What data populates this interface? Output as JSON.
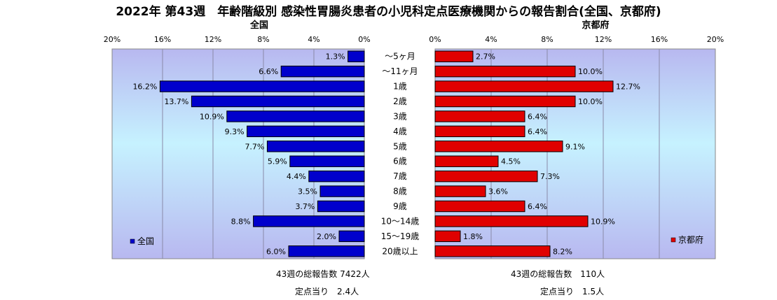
{
  "title": "2022年 第43週　年齢階級別 感染性胃腸炎患者の小児科定点医療機関からの報告割合(全国、京都府)",
  "categories": [
    "～5ヶ月",
    "～11ヶ月",
    "1歳",
    "2歳",
    "3歳",
    "4歳",
    "5歳",
    "6歳",
    "7歳",
    "8歳",
    "9歳",
    "10～14歳",
    "15～19歳",
    "20歳以上"
  ],
  "colors": {
    "national": "#0000cc",
    "kyoto": "#e00000"
  },
  "chart_data": [
    {
      "type": "bar",
      "orientation": "horizontal",
      "direction": "right-to-left",
      "title": "全国",
      "xlim": [
        0,
        20
      ],
      "xticks": [
        "0%",
        "4%",
        "8%",
        "12%",
        "16%",
        "20%"
      ],
      "categories": [
        "～5ヶ月",
        "～11ヶ月",
        "1歳",
        "2歳",
        "3歳",
        "4歳",
        "5歳",
        "6歳",
        "7歳",
        "8歳",
        "9歳",
        "10～14歳",
        "15～19歳",
        "20歳以上"
      ],
      "series": [
        {
          "name": "全国",
          "values": [
            1.3,
            6.6,
            16.2,
            13.7,
            10.9,
            9.3,
            7.7,
            5.9,
            4.4,
            3.5,
            3.7,
            8.8,
            2.0,
            6.0
          ],
          "labels": [
            "1.3%",
            "6.6%",
            "16.2%",
            "13.7%",
            "10.9%",
            "9.3%",
            "7.7%",
            "5.9%",
            "4.4%",
            "3.5%",
            "3.7%",
            "8.8%",
            "2.0%",
            "6.0%"
          ]
        }
      ],
      "legend": "bottom-left",
      "grid": true
    },
    {
      "type": "bar",
      "orientation": "horizontal",
      "direction": "left-to-right",
      "title": "京都府",
      "xlim": [
        0,
        20
      ],
      "xticks": [
        "0%",
        "4%",
        "8%",
        "12%",
        "16%",
        "20%"
      ],
      "categories": [
        "～5ヶ月",
        "～11ヶ月",
        "1歳",
        "2歳",
        "3歳",
        "4歳",
        "5歳",
        "6歳",
        "7歳",
        "8歳",
        "9歳",
        "10～14歳",
        "15～19歳",
        "20歳以上"
      ],
      "series": [
        {
          "name": "京都府",
          "values": [
            2.7,
            10.0,
            12.7,
            10.0,
            6.4,
            6.4,
            9.1,
            4.5,
            7.3,
            3.6,
            6.4,
            10.9,
            1.8,
            8.2
          ],
          "labels": [
            "2.7%",
            "10.0%",
            "12.7%",
            "10.0%",
            "6.4%",
            "6.4%",
            "9.1%",
            "4.5%",
            "7.3%",
            "3.6%",
            "6.4%",
            "10.9%",
            "1.8%",
            "8.2%"
          ]
        }
      ],
      "legend": "bottom-right",
      "grid": true
    }
  ],
  "summary": {
    "national_total": "43週の総報告数 7422人",
    "national_per_site": "定点当り　2.4人",
    "kyoto_total": "43週の総報告数　110人",
    "kyoto_per_site": "定点当り　1.5人"
  }
}
